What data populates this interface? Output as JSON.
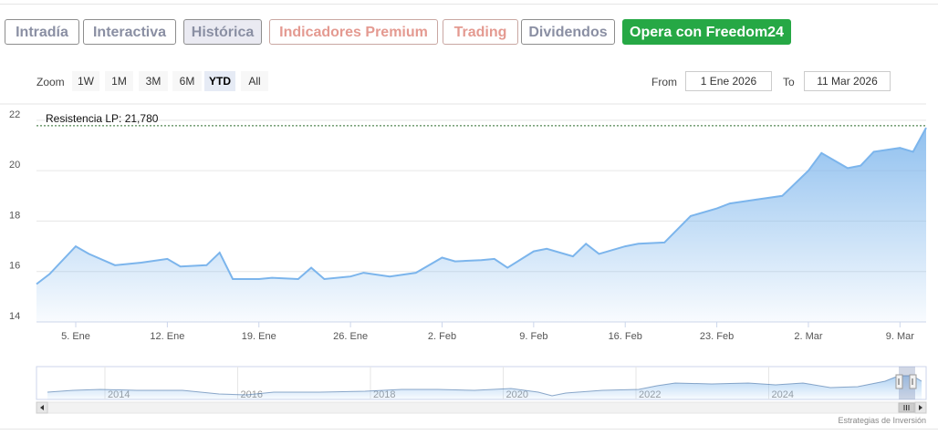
{
  "tabs": [
    {
      "label": "Intradía",
      "color": "#8a8fa3",
      "bg": "#ffffff",
      "border": "#8d8d8d"
    },
    {
      "label": "Interactiva",
      "color": "#8a8fa3",
      "bg": "#ffffff",
      "border": "#8d8d8d"
    },
    {
      "label": "Histórica",
      "color": "#8a8fa3",
      "bg": "#eaeaf2",
      "border": "#8d8d8d"
    },
    {
      "label": "Indicadores Premium",
      "color": "#e49a91",
      "bg": "#ffffff",
      "border": "#c9a7a2"
    },
    {
      "label": "Trading",
      "color": "#e49a91",
      "bg": "#ffffff",
      "border": "#c9a7a2"
    },
    {
      "label": "Dividendos",
      "color": "#8a8fa3",
      "bg": "#ffffff",
      "border": "#8d8d8d"
    },
    {
      "label": "Opera con Freedom24",
      "color": "#ffffff",
      "bg": "#26a845",
      "border": "#26a845"
    }
  ],
  "zoom": {
    "label": "Zoom",
    "options": [
      "1W",
      "1M",
      "3M",
      "6M",
      "YTD",
      "All"
    ],
    "selected": "YTD"
  },
  "range": {
    "from_label": "From",
    "from_value": "1 Ene 2026",
    "to_label": "To",
    "to_value": "11 Mar 2026"
  },
  "credits": "Estrategias de Inversión",
  "colors": {
    "line": "#7cb5ec",
    "resistance": "#2b6b2b"
  },
  "chart_data": {
    "type": "area",
    "x_ticks": [
      "5. Ene",
      "12. Ene",
      "19. Ene",
      "26. Ene",
      "2. Feb",
      "9. Feb",
      "16. Feb",
      "23. Feb",
      "2. Mar",
      "9. Mar"
    ],
    "y_ticks": [
      14,
      16,
      18,
      20,
      22
    ],
    "ylim": [
      14,
      22.5
    ],
    "x_range": [
      "2026-01-02",
      "2026-03-11"
    ],
    "annotation": {
      "label": "Resistencia LP: 21,780",
      "value": 21.78
    },
    "series": [
      {
        "x": [
          "2026-01-02",
          "2026-01-03",
          "2026-01-05",
          "2026-01-06",
          "2026-01-08",
          "2026-01-10",
          "2026-01-12",
          "2026-01-13",
          "2026-01-15",
          "2026-01-16",
          "2026-01-17",
          "2026-01-19",
          "2026-01-20",
          "2026-01-22",
          "2026-01-23",
          "2026-01-24",
          "2026-01-26",
          "2026-01-27",
          "2026-01-29",
          "2026-01-31",
          "2026-02-02",
          "2026-02-03",
          "2026-02-05",
          "2026-02-06",
          "2026-02-07",
          "2026-02-09",
          "2026-02-10",
          "2026-02-12",
          "2026-02-13",
          "2026-02-14",
          "2026-02-16",
          "2026-02-17",
          "2026-02-19",
          "2026-02-21",
          "2026-02-23",
          "2026-02-24",
          "2026-02-26",
          "2026-02-28",
          "2026-03-02",
          "2026-03-03",
          "2026-03-05",
          "2026-03-06",
          "2026-03-07",
          "2026-03-09",
          "2026-03-10",
          "2026-03-11"
        ],
        "y": [
          15.5,
          15.9,
          17.0,
          16.7,
          16.25,
          16.35,
          16.5,
          16.2,
          16.25,
          16.75,
          15.7,
          15.7,
          15.75,
          15.7,
          16.15,
          15.7,
          15.8,
          15.95,
          15.8,
          15.95,
          16.55,
          16.4,
          16.45,
          16.5,
          16.15,
          16.8,
          16.9,
          16.6,
          17.1,
          16.7,
          17.0,
          17.1,
          17.15,
          18.2,
          18.5,
          18.7,
          18.85,
          19.0,
          20.0,
          20.7,
          20.1,
          20.2,
          20.75,
          20.9,
          20.75,
          21.7
        ]
      }
    ],
    "navigator_x_ticks": [
      "2014",
      "2016",
      "2018",
      "2020",
      "2022",
      "2024"
    ]
  }
}
